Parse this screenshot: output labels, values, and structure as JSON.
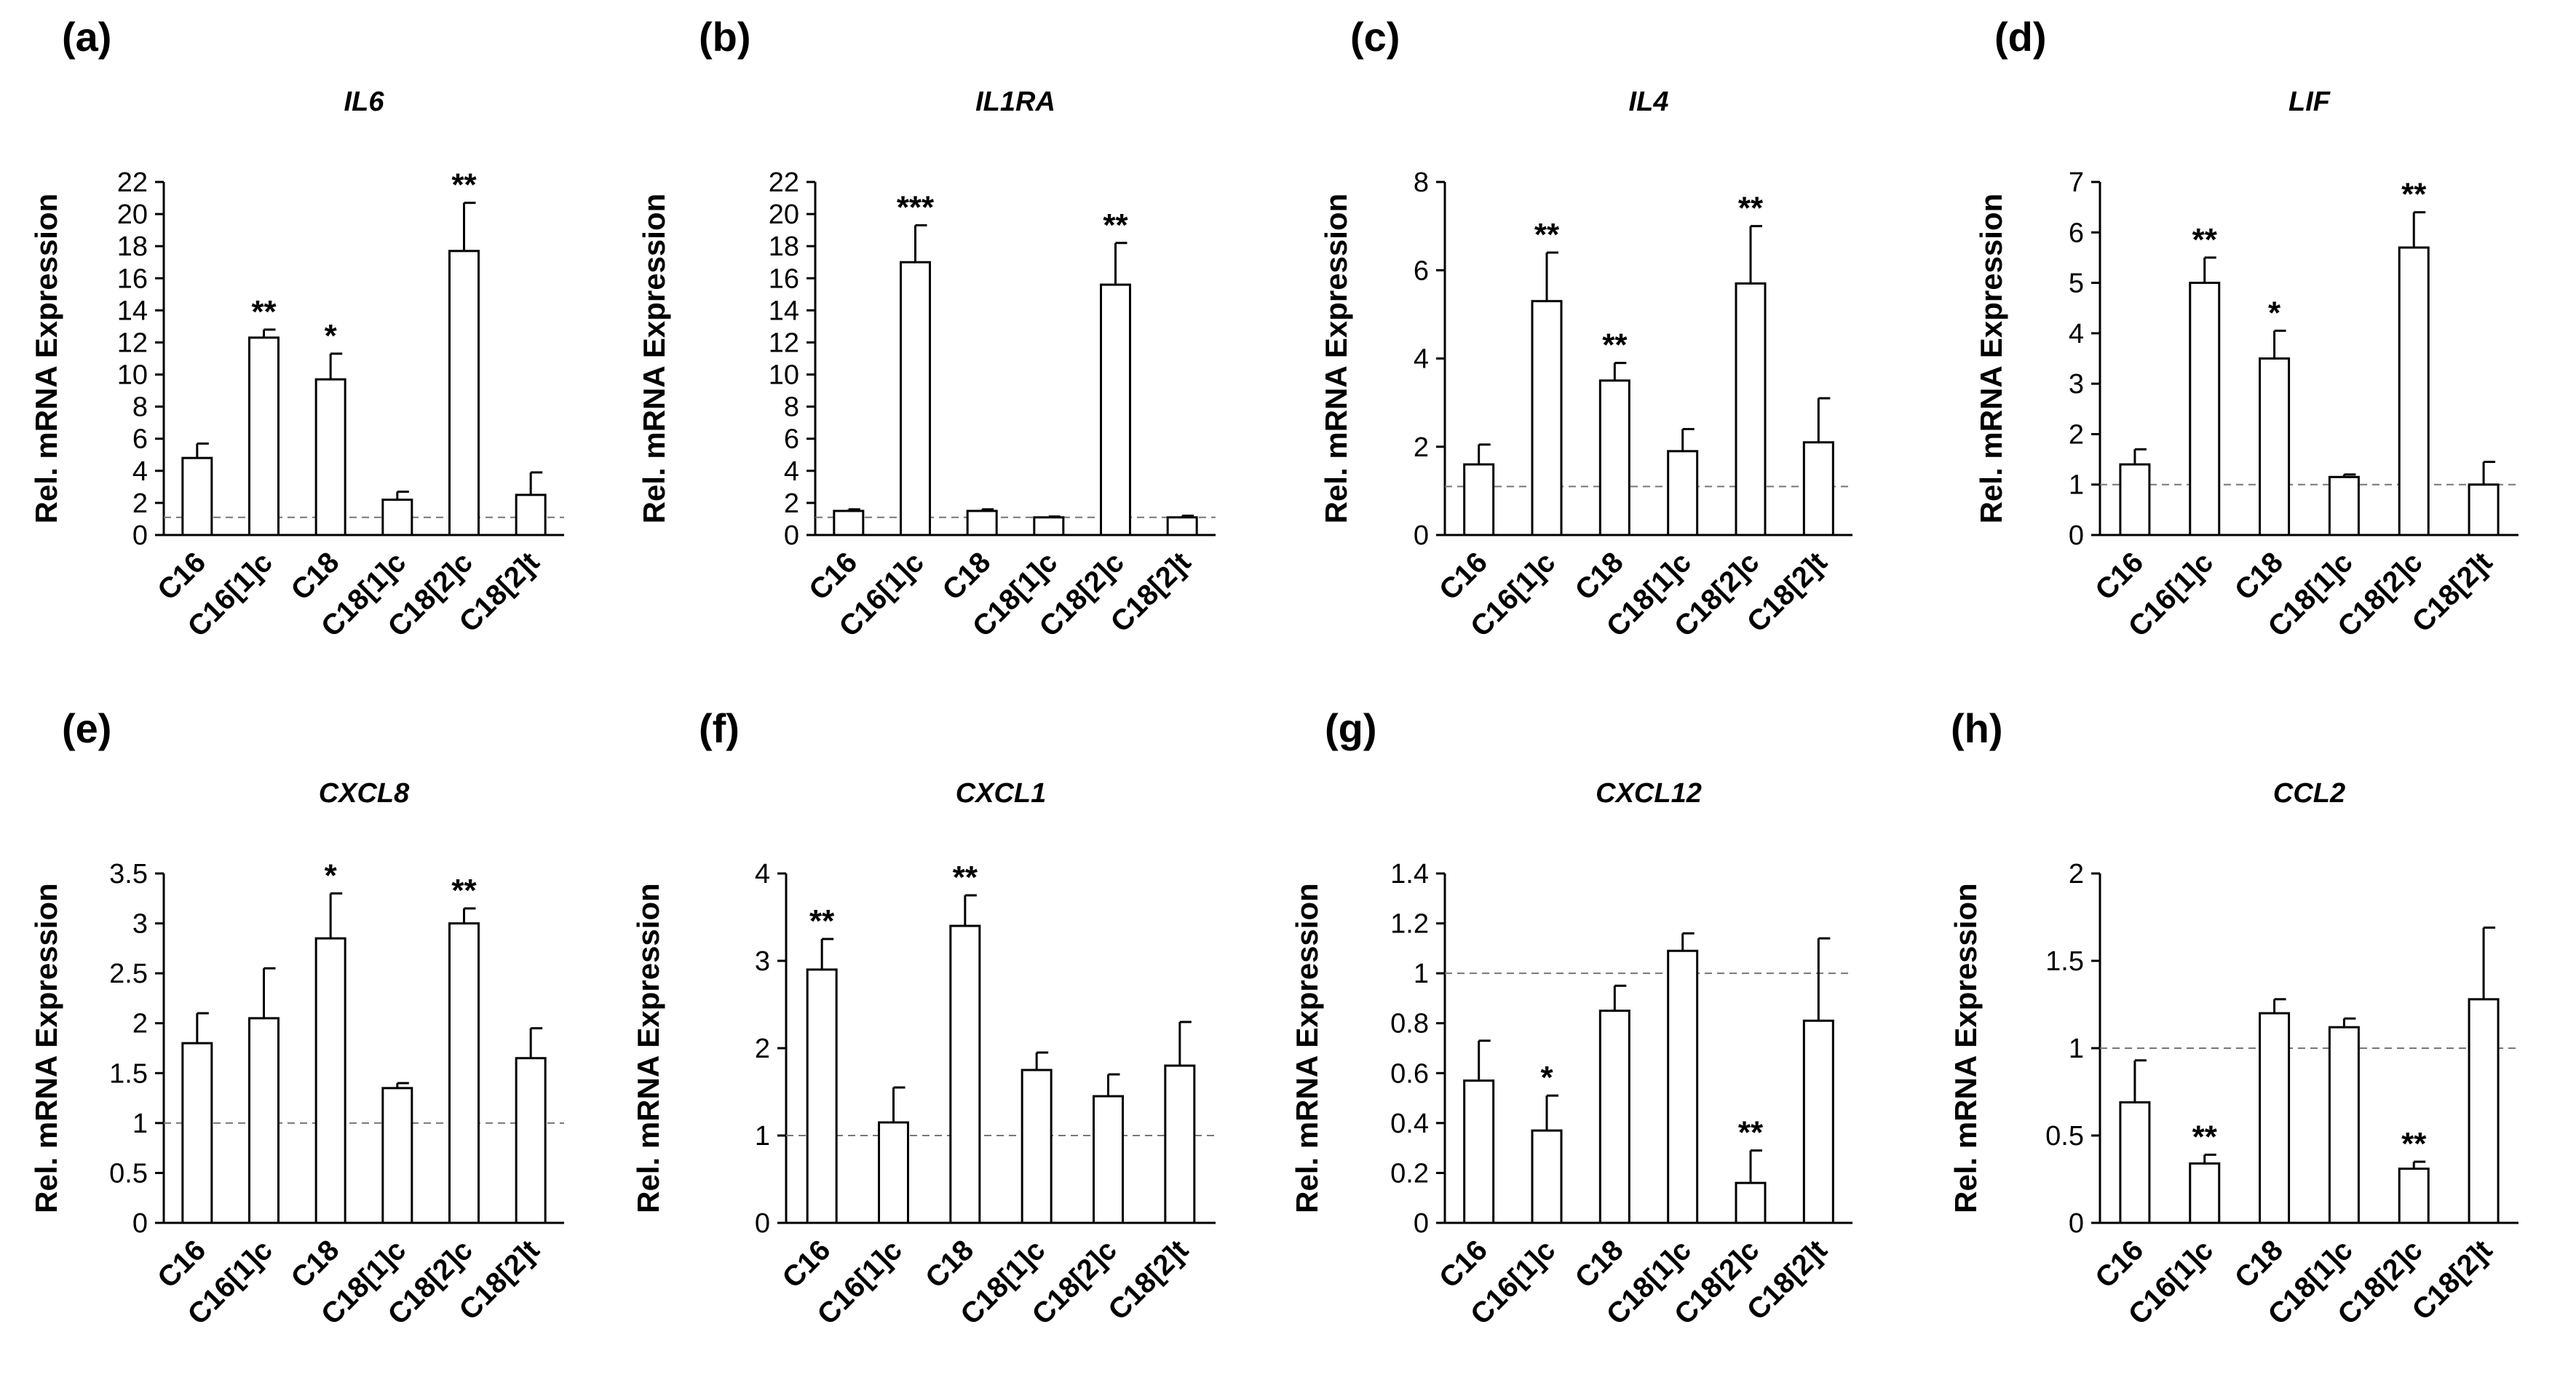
{
  "figure": {
    "background": "#ffffff",
    "bar_color": "#ffffff",
    "stroke_color": "#000000",
    "ref_line_color": "#777777"
  },
  "categories": [
    "C16",
    "C16[1]c",
    "C18",
    "C18[1]c",
    "C18[2]c",
    "C18[2]t"
  ],
  "chart_data": [
    {
      "type": "bar",
      "panel": "(a)",
      "title": "IL6",
      "ylabel": "Rel. mRNA Expression",
      "xlabel": "",
      "categories": [
        "C16",
        "C16[1]c",
        "C18",
        "C18[1]c",
        "C18[2]c",
        "C18[2]t"
      ],
      "ylim": [
        0,
        22
      ],
      "yticks": [
        0,
        2,
        4,
        6,
        8,
        10,
        12,
        14,
        16,
        18,
        20,
        22
      ],
      "ytick_labels": [
        "0",
        "2",
        "4",
        "6",
        "8",
        "10",
        "12",
        "14",
        "16",
        "18",
        "20",
        "22"
      ],
      "values": [
        4.8,
        12.3,
        9.7,
        2.2,
        17.7,
        2.5
      ],
      "errors": [
        0.9,
        0.5,
        1.6,
        0.5,
        3.0,
        1.4
      ],
      "significance": [
        "",
        "**",
        "*",
        "",
        "**",
        ""
      ],
      "reference_line": 1.1,
      "grid": false
    },
    {
      "type": "bar",
      "panel": "(b)",
      "title": "IL1RA",
      "ylabel": "Rel. mRNA Expression",
      "xlabel": "",
      "categories": [
        "C16",
        "C16[1]c",
        "C18",
        "C18[1]c",
        "C18[2]c",
        "C18[2]t"
      ],
      "ylim": [
        0,
        22
      ],
      "yticks": [
        0,
        2,
        4,
        6,
        8,
        10,
        12,
        14,
        16,
        18,
        20,
        22
      ],
      "ytick_labels": [
        "0",
        "2",
        "4",
        "6",
        "8",
        "10",
        "12",
        "14",
        "16",
        "18",
        "20",
        "22"
      ],
      "values": [
        1.5,
        17.0,
        1.5,
        1.1,
        15.6,
        1.1
      ],
      "errors": [
        0.1,
        2.3,
        0.1,
        0.05,
        2.6,
        0.1
      ],
      "significance": [
        "",
        "***",
        "",
        "",
        "**",
        ""
      ],
      "reference_line": 1.1,
      "grid": false
    },
    {
      "type": "bar",
      "panel": "(c)",
      "title": "IL4",
      "ylabel": "Rel. mRNA Expression",
      "xlabel": "",
      "categories": [
        "C16",
        "C16[1]c",
        "C18",
        "C18[1]c",
        "C18[2]c",
        "C18[2]t"
      ],
      "ylim": [
        0,
        8
      ],
      "yticks": [
        0,
        2,
        4,
        6,
        8
      ],
      "ytick_labels": [
        "0",
        "2",
        "4",
        "6",
        "8"
      ],
      "values": [
        1.6,
        5.3,
        3.5,
        1.9,
        5.7,
        2.1
      ],
      "errors": [
        0.45,
        1.1,
        0.4,
        0.5,
        1.3,
        1.0
      ],
      "significance": [
        "",
        "**",
        "**",
        "",
        "**",
        ""
      ],
      "reference_line": 1.1,
      "grid": false
    },
    {
      "type": "bar",
      "panel": "(d)",
      "title": "LIF",
      "ylabel": "Rel. mRNA Expression",
      "xlabel": "",
      "categories": [
        "C16",
        "C16[1]c",
        "C18",
        "C18[1]c",
        "C18[2]c",
        "C18[2]t"
      ],
      "ylim": [
        0,
        7
      ],
      "yticks": [
        0,
        1,
        2,
        3,
        4,
        5,
        6,
        7
      ],
      "ytick_labels": [
        "0",
        "1",
        "2",
        "3",
        "4",
        "5",
        "6",
        "7"
      ],
      "values": [
        1.4,
        5.0,
        3.5,
        1.15,
        5.7,
        1.0
      ],
      "errors": [
        0.3,
        0.5,
        0.55,
        0.05,
        0.7,
        0.45
      ],
      "significance": [
        "",
        "**",
        "*",
        "",
        "**",
        ""
      ],
      "reference_line": 1.0,
      "grid": false
    },
    {
      "type": "bar",
      "panel": "(e)",
      "title": "CXCL8",
      "ylabel": "Rel. mRNA Expression",
      "xlabel": "",
      "categories": [
        "C16",
        "C16[1]c",
        "C18",
        "C18[1]c",
        "C18[2]c",
        "C18[2]t"
      ],
      "ylim": [
        0,
        3.5
      ],
      "yticks": [
        0,
        0.5,
        1,
        1.5,
        2,
        2.5,
        3,
        3.5
      ],
      "ytick_labels": [
        "0",
        "0.5",
        "1",
        "1.5",
        "2",
        "2.5",
        "3",
        "3.5"
      ],
      "values": [
        1.8,
        2.05,
        2.85,
        1.35,
        3.0,
        1.65
      ],
      "errors": [
        0.3,
        0.5,
        0.45,
        0.05,
        0.15,
        0.3
      ],
      "significance": [
        "",
        "",
        "*",
        "",
        "**",
        ""
      ],
      "reference_line": 1.0,
      "grid": false
    },
    {
      "type": "bar",
      "panel": "(f)",
      "title": "CXCL1",
      "ylabel": "Rel. mRNA Expression",
      "xlabel": "",
      "categories": [
        "C16",
        "C16[1]c",
        "C18",
        "C18[1]c",
        "C18[2]c",
        "C18[2]t"
      ],
      "ylim": [
        0,
        4
      ],
      "yticks": [
        0,
        1,
        2,
        3,
        4
      ],
      "ytick_labels": [
        "0",
        "1",
        "2",
        "3",
        "4"
      ],
      "values": [
        2.9,
        1.15,
        3.4,
        1.75,
        1.45,
        1.8
      ],
      "errors": [
        0.35,
        0.4,
        0.35,
        0.2,
        0.25,
        0.5
      ],
      "significance": [
        "**",
        "",
        "**",
        "",
        "",
        ""
      ],
      "reference_line": 1.0,
      "grid": false
    },
    {
      "type": "bar",
      "panel": "(g)",
      "title": "CXCL12",
      "ylabel": "Rel. mRNA Expression",
      "xlabel": "",
      "categories": [
        "C16",
        "C16[1]c",
        "C18",
        "C18[1]c",
        "C18[2]c",
        "C18[2]t"
      ],
      "ylim": [
        0,
        1.4
      ],
      "yticks": [
        0,
        0.2,
        0.4,
        0.6,
        0.8,
        1,
        1.2,
        1.4
      ],
      "ytick_labels": [
        "0",
        "0.2",
        "0.4",
        "0.6",
        "0.8",
        "1",
        "1.2",
        "1.4"
      ],
      "values": [
        0.57,
        0.37,
        0.85,
        1.09,
        0.16,
        0.81
      ],
      "errors": [
        0.16,
        0.14,
        0.1,
        0.07,
        0.13,
        0.33
      ],
      "significance": [
        "",
        "*",
        "",
        "",
        "**",
        ""
      ],
      "reference_line": 1.0,
      "grid": false
    },
    {
      "type": "bar",
      "panel": "(h)",
      "title": "CCL2",
      "ylabel": "Rel. mRNA Expression",
      "xlabel": "",
      "categories": [
        "C16",
        "C16[1]c",
        "C18",
        "C18[1]c",
        "C18[2]c",
        "C18[2]t"
      ],
      "ylim": [
        0,
        2
      ],
      "yticks": [
        0,
        0.5,
        1,
        1.5,
        2
      ],
      "ytick_labels": [
        "0",
        "0.5",
        "1",
        "1.5",
        "2"
      ],
      "values": [
        0.69,
        0.34,
        1.2,
        1.12,
        0.31,
        1.28
      ],
      "errors": [
        0.24,
        0.05,
        0.08,
        0.05,
        0.04,
        0.41
      ],
      "significance": [
        "",
        "**",
        "",
        "",
        "**",
        ""
      ],
      "reference_line": 1.0,
      "grid": false
    }
  ]
}
